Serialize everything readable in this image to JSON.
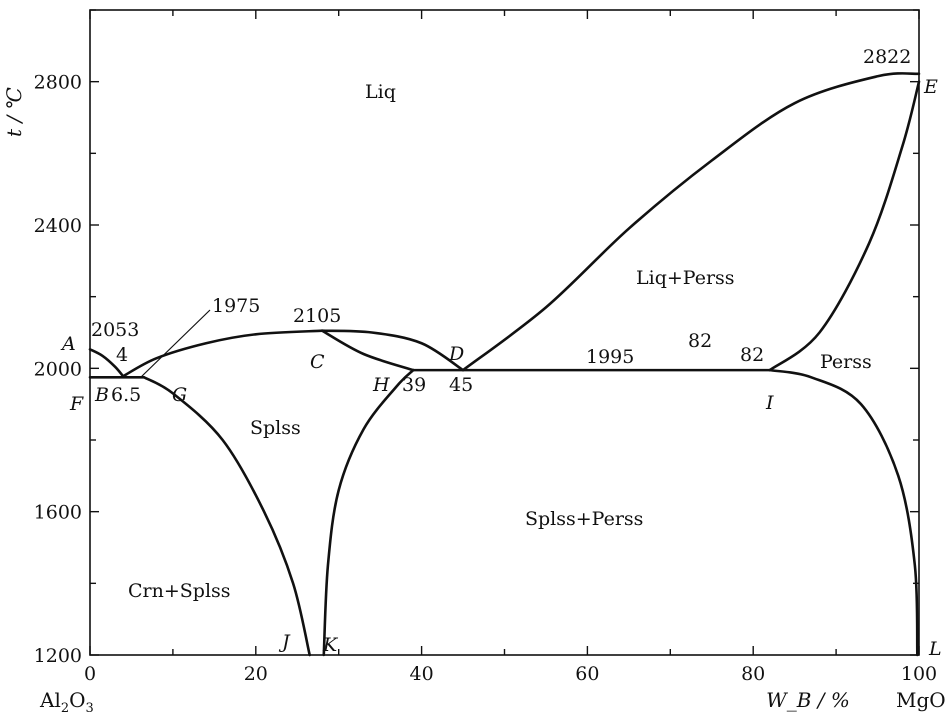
{
  "chart_data": {
    "type": "line",
    "title": "",
    "xlabel": "W_B / %",
    "ylabel": "t / ℃",
    "xlim": [
      0,
      100
    ],
    "ylim": [
      1200,
      3000
    ],
    "x_ticks": [
      "0",
      "20",
      "40",
      "60",
      "80",
      "100"
    ],
    "y_ticks": [
      "1200",
      "1600",
      "2000",
      "2400",
      "2800"
    ],
    "x_tick_values": [
      0,
      20,
      40,
      60,
      80,
      100
    ],
    "y_tick_values": [
      1200,
      1600,
      2000,
      2400,
      2800
    ],
    "grid": false,
    "left_component": "Al2O3",
    "right_component": "MgO",
    "curves": [
      {
        "id": "liquidus-AB",
        "points": [
          [
            0,
            2053
          ],
          [
            1.5,
            2035
          ],
          [
            3,
            2005
          ],
          [
            4,
            1978
          ]
        ]
      },
      {
        "id": "eutectic-FG",
        "points": [
          [
            0,
            1975
          ],
          [
            6.5,
            1975
          ]
        ]
      },
      {
        "id": "liquidus-BC",
        "points": [
          [
            4,
            1978
          ],
          [
            8,
            2028
          ],
          [
            14,
            2070
          ],
          [
            20,
            2095
          ],
          [
            28,
            2105
          ]
        ]
      },
      {
        "id": "liquidus-CD",
        "points": [
          [
            28,
            2105
          ],
          [
            34,
            2100
          ],
          [
            40,
            2070
          ],
          [
            45,
            1995
          ]
        ]
      },
      {
        "id": "solidus-CH",
        "points": [
          [
            28,
            2105
          ],
          [
            33,
            2040
          ],
          [
            39,
            1995
          ]
        ]
      },
      {
        "id": "eutectic-HI",
        "points": [
          [
            39,
            1995
          ],
          [
            82,
            1995
          ]
        ]
      },
      {
        "id": "liquidus-DE",
        "points": [
          [
            45,
            1995
          ],
          [
            55,
            2170
          ],
          [
            65,
            2390
          ],
          [
            75,
            2580
          ],
          [
            85,
            2740
          ],
          [
            95,
            2815
          ],
          [
            100,
            2822
          ]
        ]
      },
      {
        "id": "solidus-IE",
        "points": [
          [
            82,
            1995
          ],
          [
            88,
            2100
          ],
          [
            94,
            2350
          ],
          [
            98,
            2620
          ],
          [
            100,
            2800
          ]
        ]
      },
      {
        "id": "solvus-GJ",
        "points": [
          [
            6.5,
            1975
          ],
          [
            10,
            1930
          ],
          [
            16,
            1800
          ],
          [
            21,
            1600
          ],
          [
            24.5,
            1400
          ],
          [
            26.5,
            1200
          ]
        ]
      },
      {
        "id": "solvus-HK",
        "points": [
          [
            39,
            1995
          ],
          [
            37,
            1950
          ],
          [
            33,
            1830
          ],
          [
            30,
            1660
          ],
          [
            28.7,
            1450
          ],
          [
            28.2,
            1200
          ]
        ]
      },
      {
        "id": "solvus-IL",
        "points": [
          [
            82,
            1995
          ],
          [
            87,
            1975
          ],
          [
            93,
            1900
          ],
          [
            97.5,
            1700
          ],
          [
            99.5,
            1450
          ],
          [
            99.8,
            1200
          ]
        ]
      }
    ],
    "point_labels": [
      {
        "label": "A",
        "x": 0,
        "y": 2053
      },
      {
        "label": "B",
        "x": 4,
        "y": 1978
      },
      {
        "label": "C",
        "x": 28,
        "y": 2105
      },
      {
        "label": "D",
        "x": 45,
        "y": 1995
      },
      {
        "label": "E",
        "x": 100,
        "y": 2822
      },
      {
        "label": "F",
        "x": 0,
        "y": 1975
      },
      {
        "label": "G",
        "x": 6.5,
        "y": 1975
      },
      {
        "label": "H",
        "x": 39,
        "y": 1995
      },
      {
        "label": "I",
        "x": 82,
        "y": 1995
      },
      {
        "label": "J",
        "x": 26.5,
        "y": 1200
      },
      {
        "label": "K",
        "x": 28.2,
        "y": 1200
      },
      {
        "label": "L",
        "x": 100,
        "y": 1200
      }
    ],
    "value_labels": [
      "2053",
      "4",
      "6.5",
      "1975",
      "2105",
      "39",
      "45",
      "1995",
      "82",
      "82",
      "2822"
    ],
    "regions": [
      "Liq",
      "Liq+Perss",
      "Perss",
      "Splss",
      "Splss+Perss",
      "Crn+Splss"
    ]
  }
}
